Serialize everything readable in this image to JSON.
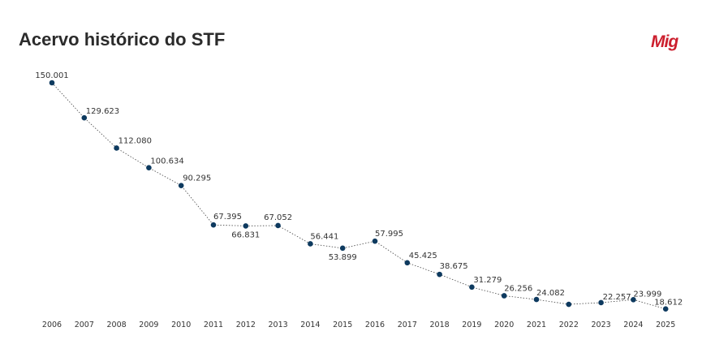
{
  "header": {
    "title": "Acervo histórico do STF",
    "logo_text": "Mig",
    "logo_color": "#cc1f2e"
  },
  "chart_data": {
    "type": "line",
    "title": "Acervo histórico do STF",
    "xlabel": "",
    "ylabel": "",
    "categories": [
      "2006",
      "2007",
      "2008",
      "2009",
      "2010",
      "2011",
      "2012",
      "2013",
      "2014",
      "2015",
      "2016",
      "2017",
      "2018",
      "2019",
      "2020",
      "2021",
      "2022",
      "2023",
      "2024",
      "2025"
    ],
    "values": [
      150001,
      129623,
      112080,
      100634,
      90295,
      67395,
      66831,
      67052,
      56441,
      53899,
      57995,
      45425,
      38675,
      31279,
      26256,
      24082,
      null,
      22257,
      23999,
      18612
    ],
    "data_labels": [
      "150.001",
      "129.623",
      "112.080",
      "100.634",
      "90.295",
      "67.395",
      "66.831",
      "67.052",
      "56.441",
      "53.899",
      "57.995",
      "45.425",
      "38.675",
      "31.279",
      "26.256",
      "24.082",
      "",
      "22.257",
      "23.999",
      "18.612"
    ],
    "ylim": [
      18000,
      150001
    ],
    "grid": false,
    "legend": "none",
    "line_style": "dotted",
    "marker_color": "#0e3a5f"
  }
}
